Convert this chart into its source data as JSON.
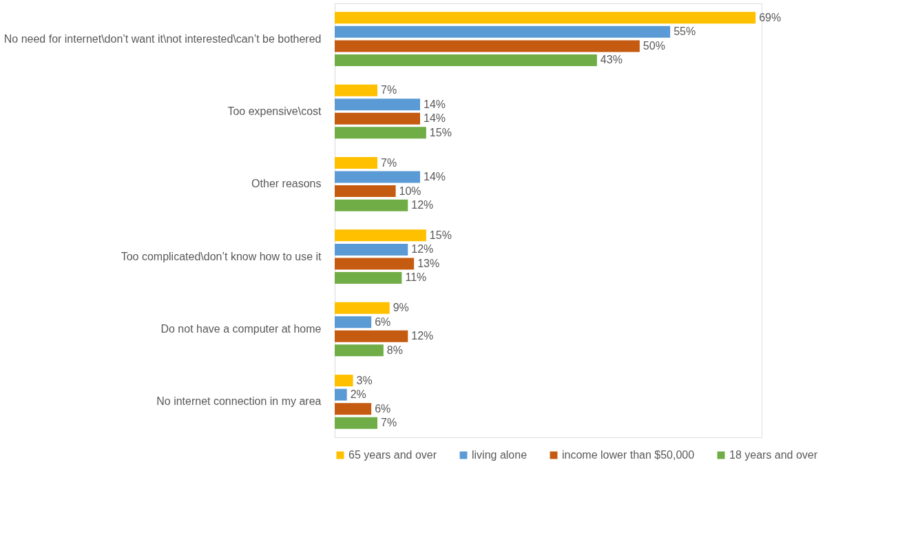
{
  "chart_data": {
    "type": "bar",
    "orientation": "horizontal",
    "legend": "bottom",
    "categories": [
      "No need for internet\\don’t want it\\not interested\\can’t be bothered",
      "Too expensive\\cost",
      "Other reasons",
      "Too complicated\\don’t know how to use it",
      "Do not have a computer at home",
      "No internet connection in my area"
    ],
    "series": [
      {
        "name": "65 years and over",
        "color": "#ffc000",
        "values": [
          69,
          7,
          7,
          15,
          9,
          3
        ],
        "value_labels": [
          "69%",
          "7%",
          "7%",
          "15%",
          "9%",
          "3%"
        ]
      },
      {
        "name": "living alone",
        "color": "#5b9bd5",
        "values": [
          55,
          14,
          14,
          12,
          6,
          2
        ],
        "value_labels": [
          "55%",
          "14%",
          "14%",
          "12%",
          "6%",
          "2%"
        ]
      },
      {
        "name": "income lower than $50,000",
        "color": "#c55a11",
        "values": [
          50,
          14,
          10,
          13,
          12,
          6
        ],
        "value_labels": [
          "50%",
          "14%",
          "10%",
          "13%",
          "12%",
          "6%"
        ]
      },
      {
        "name": "18 years and over",
        "color": "#70ad47",
        "values": [
          43,
          15,
          12,
          11,
          8,
          7
        ],
        "value_labels": [
          "43%",
          "15%",
          "12%",
          "11%",
          "8%",
          "7%"
        ]
      }
    ]
  }
}
